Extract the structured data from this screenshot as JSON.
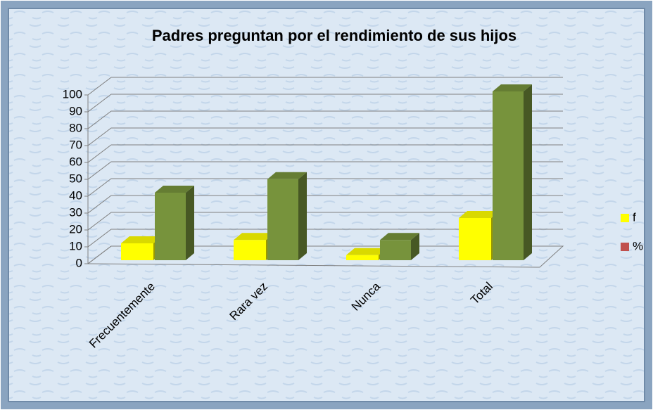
{
  "chart_data": {
    "type": "bar3d",
    "title": "Padres preguntan por el rendimiento de sus hijos",
    "categories": [
      "Frecuentemente",
      "Rara vez",
      "Nunca",
      "Total"
    ],
    "series": [
      {
        "name": "f",
        "color": "#ffff00",
        "legend_color": "#ffff00",
        "values": [
          10,
          12,
          3,
          25
        ]
      },
      {
        "name": "%",
        "color": "#77933c",
        "legend_color": "#c0504d",
        "values": [
          40,
          48,
          12,
          100
        ]
      }
    ],
    "ylim": [
      0,
      100
    ],
    "yticks": [
      0,
      10,
      20,
      30,
      40,
      50,
      60,
      70,
      80,
      90,
      100
    ],
    "grid": true,
    "legend": "right"
  }
}
